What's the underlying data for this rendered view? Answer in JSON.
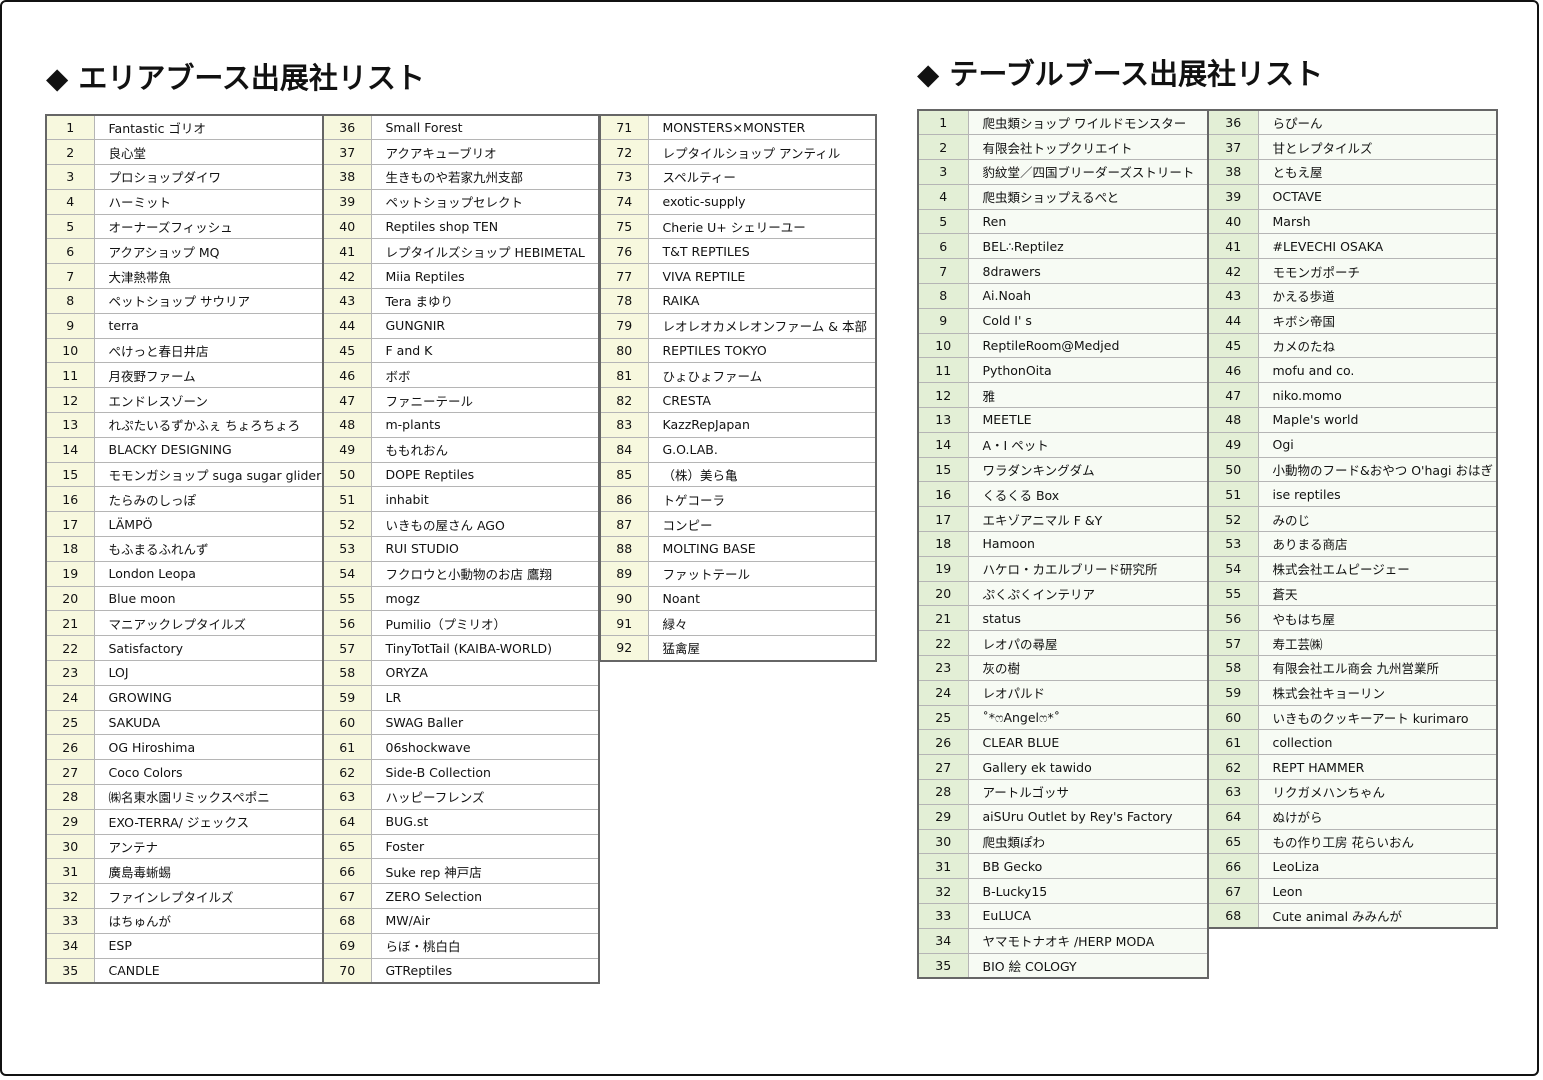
{
  "area_list": {
    "title": "エリアブース出展社リスト",
    "columns": [
      [
        {
          "no": "1",
          "name": "Fantastic ゴリオ"
        },
        {
          "no": "2",
          "name": "良心堂"
        },
        {
          "no": "3",
          "name": "プロショップダイワ"
        },
        {
          "no": "4",
          "name": "ハーミット"
        },
        {
          "no": "5",
          "name": "オーナーズフィッシュ"
        },
        {
          "no": "6",
          "name": "アクアショップ MQ"
        },
        {
          "no": "7",
          "name": "大津熱帯魚"
        },
        {
          "no": "8",
          "name": "ペットショップ サウリア"
        },
        {
          "no": "9",
          "name": "terra"
        },
        {
          "no": "10",
          "name": "ぺけっと春日井店"
        },
        {
          "no": "11",
          "name": "月夜野ファーム"
        },
        {
          "no": "12",
          "name": "エンドレスゾーン"
        },
        {
          "no": "13",
          "name": "れぷたいるずかふぇ ちょろちょろ"
        },
        {
          "no": "14",
          "name": "BLACKY DESIGNING"
        },
        {
          "no": "15",
          "name": "モモンガショップ suga sugar glider"
        },
        {
          "no": "16",
          "name": "たらみのしっぽ"
        },
        {
          "no": "17",
          "name": "LÄMPÖ"
        },
        {
          "no": "18",
          "name": "もふまるふれんず"
        },
        {
          "no": "19",
          "name": "London Leopa"
        },
        {
          "no": "20",
          "name": "Blue moon"
        },
        {
          "no": "21",
          "name": "マニアックレプタイルズ"
        },
        {
          "no": "22",
          "name": "Satisfactory"
        },
        {
          "no": "23",
          "name": "LOJ"
        },
        {
          "no": "24",
          "name": "GROWING"
        },
        {
          "no": "25",
          "name": "SAKUDA"
        },
        {
          "no": "26",
          "name": "OG Hiroshima"
        },
        {
          "no": "27",
          "name": "Coco Colors"
        },
        {
          "no": "28",
          "name": "㈱名東水園リミックスペポニ"
        },
        {
          "no": "29",
          "name": "EXO-TERRA/ ジェックス"
        },
        {
          "no": "30",
          "name": "アンテナ"
        },
        {
          "no": "31",
          "name": "廣島毒蜥蜴"
        },
        {
          "no": "32",
          "name": "ファインレプタイルズ"
        },
        {
          "no": "33",
          "name": "はちゅんが"
        },
        {
          "no": "34",
          "name": "ESP"
        },
        {
          "no": "35",
          "name": "CANDLE"
        }
      ],
      [
        {
          "no": "36",
          "name": "Small Forest"
        },
        {
          "no": "37",
          "name": "アクアキューブリオ"
        },
        {
          "no": "38",
          "name": "生きものや若家九州支部"
        },
        {
          "no": "39",
          "name": "ペットショップセレクト"
        },
        {
          "no": "40",
          "name": "Reptiles shop TEN"
        },
        {
          "no": "41",
          "name": "レプタイルズショップ HEBIMETAL"
        },
        {
          "no": "42",
          "name": "Miia Reptiles"
        },
        {
          "no": "43",
          "name": "Tera まゆり"
        },
        {
          "no": "44",
          "name": "GUNGNIR"
        },
        {
          "no": "45",
          "name": "F and K"
        },
        {
          "no": "46",
          "name": "ボボ"
        },
        {
          "no": "47",
          "name": "ファニーテール"
        },
        {
          "no": "48",
          "name": "m-plants"
        },
        {
          "no": "49",
          "name": "ももれおん"
        },
        {
          "no": "50",
          "name": "DOPE Reptiles"
        },
        {
          "no": "51",
          "name": "inhabit"
        },
        {
          "no": "52",
          "name": "いきもの屋さん AGO"
        },
        {
          "no": "53",
          "name": "RUI STUDIO"
        },
        {
          "no": "54",
          "name": "フクロウと小動物のお店 鷹翔"
        },
        {
          "no": "55",
          "name": "mogz"
        },
        {
          "no": "56",
          "name": "Pumilio（プミリオ）"
        },
        {
          "no": "57",
          "name": "TinyTotTail (KAIBA-WORLD)"
        },
        {
          "no": "58",
          "name": "ORYZA"
        },
        {
          "no": "59",
          "name": "LR"
        },
        {
          "no": "60",
          "name": "SWAG Baller"
        },
        {
          "no": "61",
          "name": "06shockwave"
        },
        {
          "no": "62",
          "name": "Side-B Collection"
        },
        {
          "no": "63",
          "name": "ハッピーフレンズ"
        },
        {
          "no": "64",
          "name": "BUG.st"
        },
        {
          "no": "65",
          "name": "Foster"
        },
        {
          "no": "66",
          "name": "Suke rep 神戸店"
        },
        {
          "no": "67",
          "name": "ZERO Selection"
        },
        {
          "no": "68",
          "name": "MW/Air"
        },
        {
          "no": "69",
          "name": "らぼ・桃白白"
        },
        {
          "no": "70",
          "name": "GTReptiles"
        }
      ],
      [
        {
          "no": "71",
          "name": "MONSTERS×MONSTER"
        },
        {
          "no": "72",
          "name": "レプタイルショップ アンティル"
        },
        {
          "no": "73",
          "name": "スペルティー"
        },
        {
          "no": "74",
          "name": "exotic-supply"
        },
        {
          "no": "75",
          "name": "Cherie U+ シェリーユー"
        },
        {
          "no": "76",
          "name": "T&T REPTILES"
        },
        {
          "no": "77",
          "name": "VIVA REPTILE"
        },
        {
          "no": "78",
          "name": "RAIKA"
        },
        {
          "no": "79",
          "name": "レオレオカメレオンファーム & 本部"
        },
        {
          "no": "80",
          "name": "REPTILES TOKYO"
        },
        {
          "no": "81",
          "name": "ひょひょファーム"
        },
        {
          "no": "82",
          "name": "CRESTA"
        },
        {
          "no": "83",
          "name": "KazzRepJapan"
        },
        {
          "no": "84",
          "name": "G.O.LAB."
        },
        {
          "no": "85",
          "name": "（株）美ら亀"
        },
        {
          "no": "86",
          "name": "トゲコーラ"
        },
        {
          "no": "87",
          "name": "コンピー"
        },
        {
          "no": "88",
          "name": "MOLTING BASE"
        },
        {
          "no": "89",
          "name": "ファットテール"
        },
        {
          "no": "90",
          "name": "Noant"
        },
        {
          "no": "91",
          "name": "緑々"
        },
        {
          "no": "92",
          "name": "猛禽屋"
        }
      ]
    ]
  },
  "table_list": {
    "title": "テーブルブース出展社リスト",
    "columns": [
      [
        {
          "no": "1",
          "name": "爬虫類ショップ ワイルドモンスター"
        },
        {
          "no": "2",
          "name": "有限会社トップクリエイト"
        },
        {
          "no": "3",
          "name": "豹紋堂／四国ブリーダーズストリート"
        },
        {
          "no": "4",
          "name": "爬虫類ショップえるぺと"
        },
        {
          "no": "5",
          "name": "Ren"
        },
        {
          "no": "6",
          "name": "BEL∴Reptilez"
        },
        {
          "no": "7",
          "name": "8drawers"
        },
        {
          "no": "8",
          "name": "Ai.Noah"
        },
        {
          "no": "9",
          "name": "Cold I' s"
        },
        {
          "no": "10",
          "name": "ReptileRoom@Medjed"
        },
        {
          "no": "11",
          "name": "PythonOita"
        },
        {
          "no": "12",
          "name": "雅"
        },
        {
          "no": "13",
          "name": "MEETLE"
        },
        {
          "no": "14",
          "name": "A・I ペット"
        },
        {
          "no": "15",
          "name": "ワラダンキングダム"
        },
        {
          "no": "16",
          "name": "くるくる Box"
        },
        {
          "no": "17",
          "name": "エキゾアニマル F &Y"
        },
        {
          "no": "18",
          "name": "Hamoon"
        },
        {
          "no": "19",
          "name": "ハケロ・カエルブリード研究所"
        },
        {
          "no": "20",
          "name": "ぷくぷくインテリア"
        },
        {
          "no": "21",
          "name": "status"
        },
        {
          "no": "22",
          "name": "レオパの尋屋"
        },
        {
          "no": "23",
          "name": "灰の樹"
        },
        {
          "no": "24",
          "name": "レオパルド"
        },
        {
          "no": "25",
          "name": "˚*ෆAngelෆ*˚"
        },
        {
          "no": "26",
          "name": "CLEAR BLUE"
        },
        {
          "no": "27",
          "name": "Gallery ek tawido"
        },
        {
          "no": "28",
          "name": "アートルゴッサ"
        },
        {
          "no": "29",
          "name": "aiSUru Outlet by Rey's Factory"
        },
        {
          "no": "30",
          "name": "爬虫類ぽわ"
        },
        {
          "no": "31",
          "name": "BB Gecko"
        },
        {
          "no": "32",
          "name": "B-Lucky15"
        },
        {
          "no": "33",
          "name": "EuLUCA"
        },
        {
          "no": "34",
          "name": "ヤマモトナオキ /HERP MODA"
        },
        {
          "no": "35",
          "name": "BIO 絵 COLOGY"
        }
      ],
      [
        {
          "no": "36",
          "name": "らぴーん"
        },
        {
          "no": "37",
          "name": "甘とレプタイルズ"
        },
        {
          "no": "38",
          "name": "ともえ屋"
        },
        {
          "no": "39",
          "name": "OCTAVE"
        },
        {
          "no": "40",
          "name": "Marsh"
        },
        {
          "no": "41",
          "name": "#LEVECHI OSAKA"
        },
        {
          "no": "42",
          "name": "モモンガポーチ"
        },
        {
          "no": "43",
          "name": "かえる歩道"
        },
        {
          "no": "44",
          "name": "キボシ帝国"
        },
        {
          "no": "45",
          "name": "カメのたね"
        },
        {
          "no": "46",
          "name": "mofu and co."
        },
        {
          "no": "47",
          "name": "niko.momo"
        },
        {
          "no": "48",
          "name": "Maple's world"
        },
        {
          "no": "49",
          "name": "Ogi"
        },
        {
          "no": "50",
          "name": "小動物のフード&おやつ O'hagi おはぎ"
        },
        {
          "no": "51",
          "name": "ise reptiles"
        },
        {
          "no": "52",
          "name": "みのじ"
        },
        {
          "no": "53",
          "name": "ありまる商店"
        },
        {
          "no": "54",
          "name": "株式会社エムピージェー"
        },
        {
          "no": "55",
          "name": "蒼天"
        },
        {
          "no": "56",
          "name": "やもはち屋"
        },
        {
          "no": "57",
          "name": "寿工芸㈱"
        },
        {
          "no": "58",
          "name": "有限会社エル商会 九州営業所"
        },
        {
          "no": "59",
          "name": "株式会社キョーリン"
        },
        {
          "no": "60",
          "name": "いきものクッキーアート kurimaro"
        },
        {
          "no": "61",
          "name": "collection"
        },
        {
          "no": "62",
          "name": "REPT HAMMER"
        },
        {
          "no": "63",
          "name": "リクガメハンちゃん"
        },
        {
          "no": "64",
          "name": "ぬけがら"
        },
        {
          "no": "65",
          "name": "もの作り工房 花らいおん"
        },
        {
          "no": "66",
          "name": "LeoLiza"
        },
        {
          "no": "67",
          "name": "Leon"
        },
        {
          "no": "68",
          "name": "Cute animal みみんが"
        }
      ]
    ]
  },
  "colors": {
    "area_number_bg": "#f7f8de",
    "table_number_bg": "#e3efd6",
    "table_name_bg": "#f7fbf4",
    "grid_line": "#b5b5b5"
  }
}
